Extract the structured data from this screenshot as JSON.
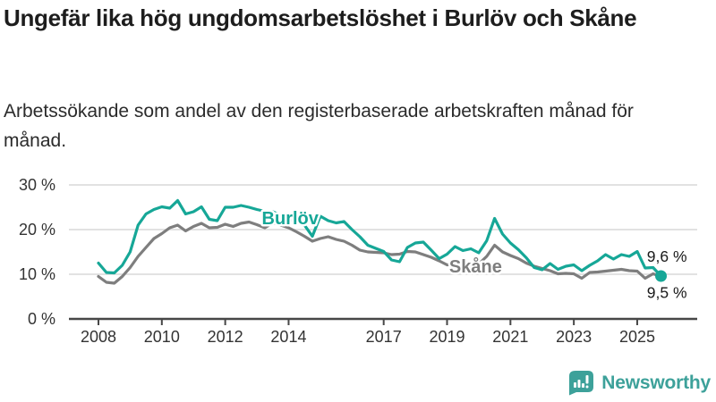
{
  "header": {
    "title": "Ungefär lika hög ungdomsarbetslöshet i Burlöv och Skåne",
    "subtitle": "Arbetssökande som andel av den registerbaserade arbetskraften månad för månad."
  },
  "branding": {
    "name": "Newsworthy"
  },
  "colors": {
    "burlov_teal": "#16a797",
    "skane_gray": "#7e7e7e",
    "logo_teal": "#3da19a",
    "grid": "#d9d9d9",
    "axis": "#474747",
    "axis_text": "#333333"
  },
  "chart_data": {
    "type": "line",
    "unit": "%",
    "title": "Ungefär lika hög ungdomsarbetslöshet i Burlöv och Skåne",
    "subtitle": "Arbetssökande som andel av den registerbaserade arbetskraften månad för månad.",
    "xlim": [
      2008,
      2026
    ],
    "ylim": [
      0,
      32
    ],
    "grid": "horizontal-only",
    "legend": "inline-series-labels",
    "y_ticks": [
      {
        "value": 0,
        "label": "0 %"
      },
      {
        "value": 10,
        "label": "10 %"
      },
      {
        "value": 20,
        "label": "20 %"
      },
      {
        "value": 30,
        "label": "30 %"
      }
    ],
    "x_ticks": [
      {
        "value": 2008,
        "label": "2008"
      },
      {
        "value": 2010,
        "label": "2010"
      },
      {
        "value": 2012,
        "label": "2012"
      },
      {
        "value": 2014,
        "label": "2014"
      },
      {
        "value": 2017,
        "label": "2017"
      },
      {
        "value": 2019,
        "label": "2019"
      },
      {
        "value": 2021,
        "label": "2021"
      },
      {
        "value": 2023,
        "label": "2023"
      },
      {
        "value": 2025,
        "label": "2025"
      }
    ],
    "x": [
      2008,
      2008.25,
      2008.5,
      2008.75,
      2009,
      2009.25,
      2009.5,
      2009.75,
      2010,
      2010.25,
      2010.5,
      2010.75,
      2011,
      2011.25,
      2011.5,
      2011.75,
      2012,
      2012.25,
      2012.5,
      2012.75,
      2013,
      2013.25,
      2013.5,
      2013.75,
      2014,
      2014.25,
      2014.5,
      2014.75,
      2015,
      2015.25,
      2015.5,
      2015.75,
      2016,
      2016.25,
      2016.5,
      2016.75,
      2017,
      2017.25,
      2017.5,
      2017.75,
      2018,
      2018.25,
      2018.5,
      2018.75,
      2019,
      2019.25,
      2019.5,
      2019.75,
      2020,
      2020.25,
      2020.5,
      2020.75,
      2021,
      2021.25,
      2021.5,
      2021.75,
      2022,
      2022.25,
      2022.5,
      2022.75,
      2023,
      2023.25,
      2023.5,
      2023.75,
      2024,
      2024.25,
      2024.5,
      2024.75,
      2025,
      2025.25,
      2025.5,
      2025.75
    ],
    "series": [
      {
        "name": "Skåne",
        "color": "#7e7e7e",
        "values": [
          9.5,
          8.2,
          8.0,
          9.5,
          11.5,
          14.0,
          16.0,
          18.0,
          19.1,
          20.4,
          21.0,
          19.7,
          20.7,
          21.4,
          20.4,
          20.5,
          21.2,
          20.7,
          21.4,
          21.7,
          21.1,
          20.4,
          21.5,
          21.0,
          20.4,
          19.5,
          18.5,
          17.4,
          18.0,
          18.4,
          17.8,
          17.4,
          16.5,
          15.4,
          15.0,
          14.9,
          14.8,
          14.4,
          14.5,
          15.1,
          15.0,
          14.4,
          13.8,
          13.0,
          12.1,
          12.3,
          11.8,
          12.0,
          12.3,
          14.0,
          16.5,
          15.0,
          14.2,
          13.5,
          12.5,
          11.8,
          11.3,
          10.8,
          10.1,
          10.2,
          10.1,
          9.1,
          10.4,
          10.5,
          10.7,
          10.9,
          11.1,
          10.8,
          10.7,
          9.1,
          10.1,
          9.5
        ],
        "label_at": {
          "x": 2019.9,
          "y": 11.8
        },
        "end_label": "9,5 %",
        "end_label_position": "below",
        "end_dot": false
      },
      {
        "name": "Burlöv",
        "color": "#16a797",
        "values": [
          12.5,
          10.4,
          10.3,
          12.0,
          15.0,
          21.0,
          23.5,
          24.5,
          25.1,
          24.8,
          26.5,
          23.5,
          24.0,
          25.1,
          22.3,
          22.0,
          25.0,
          25.0,
          25.4,
          25.0,
          24.5,
          24.1,
          24.0,
          23.2,
          22.5,
          21.5,
          21.0,
          18.5,
          23.0,
          22.0,
          21.5,
          21.8,
          20.0,
          18.4,
          16.5,
          15.8,
          15.1,
          13.2,
          12.8,
          16.0,
          17.0,
          17.2,
          15.4,
          13.5,
          14.5,
          16.2,
          15.3,
          15.7,
          14.8,
          17.5,
          22.5,
          19.0,
          17.0,
          15.5,
          13.7,
          11.5,
          11.0,
          12.4,
          11.1,
          11.8,
          12.1,
          10.8,
          12.0,
          13.0,
          14.4,
          13.4,
          14.4,
          14.0,
          15.1,
          11.4,
          11.5,
          9.6
        ],
        "label_at": {
          "x": 2014.05,
          "y": 22.6
        },
        "end_label": "9,6 %",
        "end_label_position": "above",
        "end_dot": true
      }
    ]
  }
}
